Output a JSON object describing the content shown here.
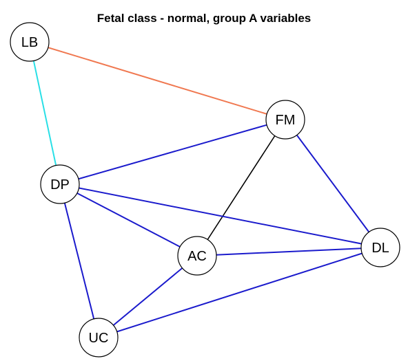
{
  "title": "Fetal class - normal, group A variables",
  "colors": {
    "edge_blue": "#1a1acc",
    "edge_black": "#000000",
    "edge_orange": "#f07850",
    "edge_cyan": "#29dfe6",
    "node_fill": "#ffffff",
    "node_stroke": "#000000"
  },
  "nodes": [
    {
      "id": "LB",
      "label": "LB"
    },
    {
      "id": "FM",
      "label": "FM"
    },
    {
      "id": "DP",
      "label": "DP"
    },
    {
      "id": "AC",
      "label": "AC"
    },
    {
      "id": "DL",
      "label": "DL"
    },
    {
      "id": "UC",
      "label": "UC"
    }
  ],
  "edges": [
    {
      "source": "LB",
      "target": "FM",
      "color": "edge_orange"
    },
    {
      "source": "LB",
      "target": "DP",
      "color": "edge_cyan"
    },
    {
      "source": "FM",
      "target": "DP",
      "color": "edge_blue"
    },
    {
      "source": "FM",
      "target": "AC",
      "color": "edge_black"
    },
    {
      "source": "FM",
      "target": "DL",
      "color": "edge_blue"
    },
    {
      "source": "DP",
      "target": "AC",
      "color": "edge_blue"
    },
    {
      "source": "DP",
      "target": "DL",
      "color": "edge_blue"
    },
    {
      "source": "DP",
      "target": "UC",
      "color": "edge_blue"
    },
    {
      "source": "AC",
      "target": "DL",
      "color": "edge_blue"
    },
    {
      "source": "AC",
      "target": "UC",
      "color": "edge_blue"
    },
    {
      "source": "DL",
      "target": "UC",
      "color": "edge_blue"
    }
  ]
}
